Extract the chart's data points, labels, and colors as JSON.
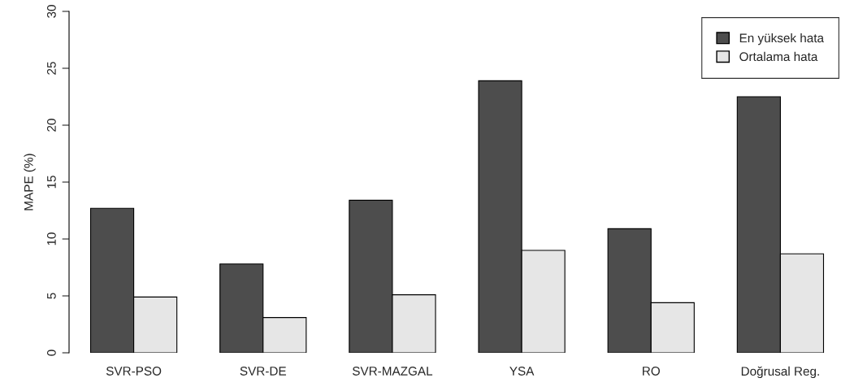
{
  "chart_data": {
    "type": "bar",
    "ylabel": "MAPE (%)",
    "categories": [
      "SVR-PSO",
      "SVR-DE",
      "SVR-MAZGAL",
      "YSA",
      "RO",
      "Doğrusal Reg."
    ],
    "series": [
      {
        "name": "En yüksek hata",
        "color": "#4d4d4d",
        "values": [
          12.7,
          7.8,
          13.4,
          23.9,
          10.9,
          22.5
        ]
      },
      {
        "name": "Ortalama hata",
        "color": "#e6e6e6",
        "values": [
          4.9,
          3.1,
          5.1,
          9.0,
          4.4,
          8.7
        ]
      }
    ],
    "ylim": [
      0,
      30
    ],
    "yticks": [
      0,
      5,
      10,
      15,
      20,
      25,
      30
    ],
    "grid": false,
    "legend": "top right"
  }
}
